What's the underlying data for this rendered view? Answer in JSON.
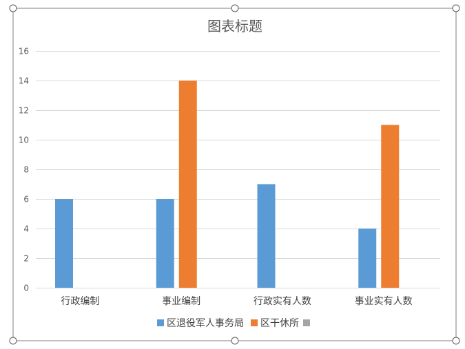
{
  "chart_data": {
    "type": "bar",
    "title": "图表标题",
    "categories": [
      "行政编制",
      "事业编制",
      "行政实有人数",
      "事业实有人数"
    ],
    "series": [
      {
        "name": "区退役军人事务局",
        "color": "#5b9bd5",
        "values": [
          6,
          6,
          7,
          4
        ]
      },
      {
        "name": "区干休所",
        "color": "#ed7d31",
        "values": [
          null,
          14,
          null,
          11
        ]
      },
      {
        "name": "",
        "color": "#a5a5a5",
        "values": [
          null,
          null,
          null,
          null
        ]
      }
    ],
    "yticks": [
      "0",
      "2",
      "4",
      "6",
      "8",
      "10",
      "12",
      "14",
      "16"
    ],
    "ylim": [
      0,
      16
    ],
    "grid": true,
    "legend_position": "bottom"
  }
}
